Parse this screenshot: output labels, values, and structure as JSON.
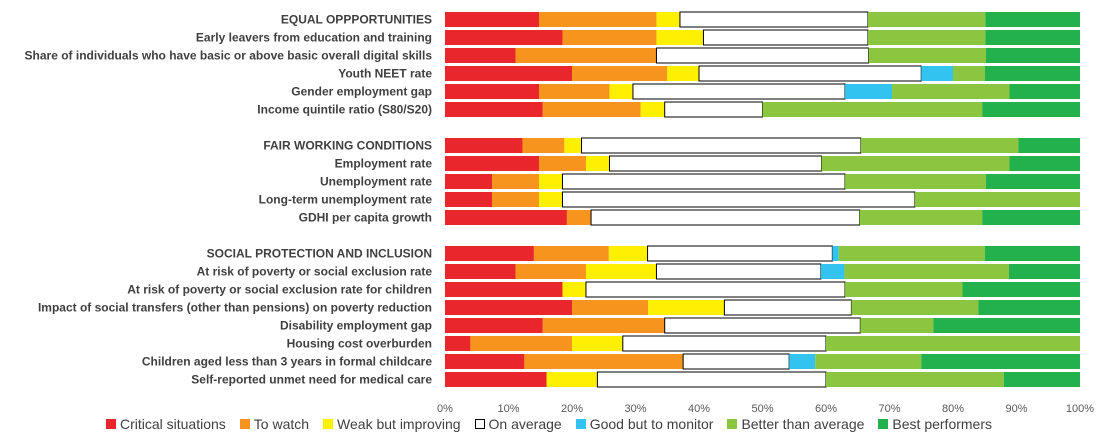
{
  "chart_data": {
    "type": "bar",
    "orientation": "horizontal-stacked-percent",
    "title": "",
    "xlabel": "",
    "ylabel": "",
    "xlim": [
      0,
      100
    ],
    "x_ticks": [
      "0%",
      "10%",
      "20%",
      "30%",
      "40%",
      "50%",
      "60%",
      "70%",
      "80%",
      "90%",
      "100%"
    ],
    "grid": false,
    "legend_position": "bottom",
    "categories": [
      "EQUAL OPPPORTUNITIES",
      "Early leavers from education and training",
      "Share of individuals who have basic or above basic overall digital skills",
      "Youth NEET rate",
      "Gender employment gap",
      "Income quintile ratio (S80/S20)",
      "FAIR WORKING CONDITIONS",
      "Employment rate",
      "Unemployment rate",
      "Long-term unemployment rate",
      "GDHI per capita growth",
      "SOCIAL PROTECTION AND INCLUSION",
      "At risk of poverty or social exclusion rate",
      "At risk of poverty or social exclusion rate for children",
      "Impact of social transfers (other than pensions) on poverty reduction",
      "Disability employment gap",
      "Housing cost overburden",
      "Children aged less than 3 years in formal childcare",
      "Self-reported unmet need for medical care"
    ],
    "row_gaps_before": [
      6,
      11
    ],
    "series": [
      {
        "name": "Critical situations",
        "color": "#e8262b",
        "values": [
          14.8,
          18.5,
          11.1,
          20.0,
          14.8,
          15.4,
          12.2,
          14.8,
          7.4,
          7.4,
          19.2,
          14.0,
          11.1,
          18.5,
          20.0,
          15.4,
          4.0,
          12.5,
          16.0
        ]
      },
      {
        "name": "To watch",
        "color": "#f6941d",
        "values": [
          18.5,
          14.8,
          22.2,
          15.0,
          11.1,
          15.4,
          6.6,
          7.4,
          7.4,
          7.4,
          3.8,
          11.8,
          11.1,
          0,
          12.0,
          19.2,
          16.0,
          25.0,
          0
        ]
      },
      {
        "name": "Weak but improving",
        "color": "#ffef00",
        "values": [
          3.7,
          7.4,
          0,
          5.0,
          3.7,
          3.8,
          2.7,
          3.7,
          3.7,
          3.7,
          0,
          6.1,
          11.1,
          3.7,
          12.0,
          0,
          8.0,
          0,
          8.0
        ]
      },
      {
        "name": "On average",
        "color": "#ffffff",
        "values": [
          29.6,
          25.9,
          33.4,
          35.0,
          33.4,
          15.4,
          44.0,
          33.4,
          44.5,
          55.5,
          42.3,
          29.1,
          25.9,
          40.8,
          20.0,
          30.8,
          32.0,
          16.7,
          36.0
        ]
      },
      {
        "name": "Good but to monitor",
        "color": "#33c3f0",
        "values": [
          0,
          0,
          0,
          5.0,
          7.4,
          0,
          0,
          0,
          0,
          0,
          0,
          1.0,
          3.7,
          0,
          0,
          0,
          0,
          4.1,
          0
        ]
      },
      {
        "name": "Better than average",
        "color": "#8cc53f",
        "values": [
          18.5,
          18.5,
          18.5,
          5.0,
          18.5,
          34.6,
          24.8,
          29.6,
          22.2,
          26.0,
          19.3,
          23.0,
          25.9,
          18.5,
          20.0,
          11.5,
          40.0,
          16.7,
          28.0
        ]
      },
      {
        "name": "Best performers",
        "color": "#22b14c",
        "values": [
          14.9,
          14.9,
          14.8,
          15.0,
          11.1,
          15.4,
          10.1,
          11.1,
          14.8,
          0,
          15.4,
          15.0,
          11.2,
          18.5,
          16.0,
          23.1,
          0,
          25.0,
          12.0
        ]
      }
    ]
  }
}
